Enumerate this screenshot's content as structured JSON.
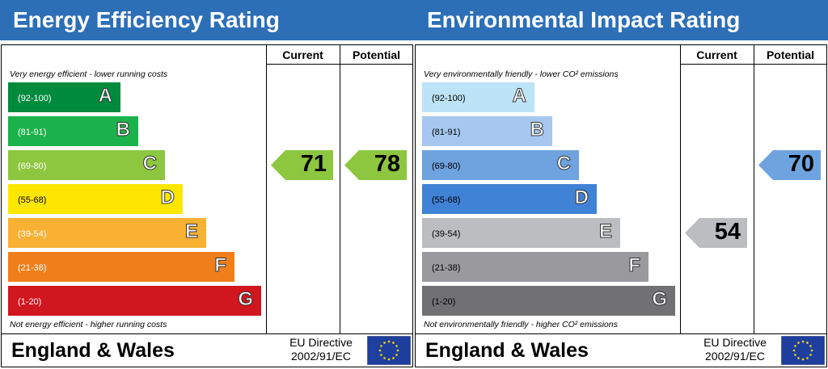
{
  "columns": {
    "current": "Current",
    "potential": "Potential"
  },
  "footer": {
    "region": "England & Wales",
    "directive_line1": "EU Directive",
    "directive_line2": "2002/91/EC"
  },
  "icons": {
    "flag": "eu-flag-icon"
  },
  "chart_data": [
    {
      "type": "rating-bands",
      "title": "Energy Efficiency Rating",
      "top_note": "Very energy efficient - lower running costs",
      "bottom_note": "Not energy efficient - higher running costs",
      "bands": [
        {
          "letter": "A",
          "range": "(92-100)",
          "color": "#008a3e"
        },
        {
          "letter": "B",
          "range": "(81-91)",
          "color": "#1cb24b"
        },
        {
          "letter": "C",
          "range": "(69-80)",
          "color": "#8dc63f"
        },
        {
          "letter": "D",
          "range": "(55-68)",
          "color": "#ffe600"
        },
        {
          "letter": "E",
          "range": "(39-54)",
          "color": "#f8b133"
        },
        {
          "letter": "F",
          "range": "(21-38)",
          "color": "#f07e1b"
        },
        {
          "letter": "G",
          "range": "(1-20)",
          "color": "#d0161e"
        }
      ],
      "current": 71,
      "potential": 78,
      "current_color": "#8dc63f",
      "potential_color": "#8dc63f"
    },
    {
      "type": "rating-bands",
      "title": "Environmental Impact Rating",
      "top_note": "Very environmentally friendly - lower CO² emissions",
      "bottom_note": "Not environmentally friendly - higher CO² emissions",
      "bands": [
        {
          "letter": "A",
          "range": "(92-100)",
          "color": "#bde3f7"
        },
        {
          "letter": "B",
          "range": "(81-91)",
          "color": "#a6c8ee"
        },
        {
          "letter": "C",
          "range": "(69-80)",
          "color": "#6fa3e0"
        },
        {
          "letter": "D",
          "range": "(55-68)",
          "color": "#3f82d6"
        },
        {
          "letter": "E",
          "range": "(39-54)",
          "color": "#bcbdc0"
        },
        {
          "letter": "F",
          "range": "(21-38)",
          "color": "#9a999e"
        },
        {
          "letter": "G",
          "range": "(1-20)",
          "color": "#717174"
        }
      ],
      "current": 54,
      "potential": 70,
      "current_color": "#bcbdc0",
      "potential_color": "#6fa3e0"
    }
  ]
}
